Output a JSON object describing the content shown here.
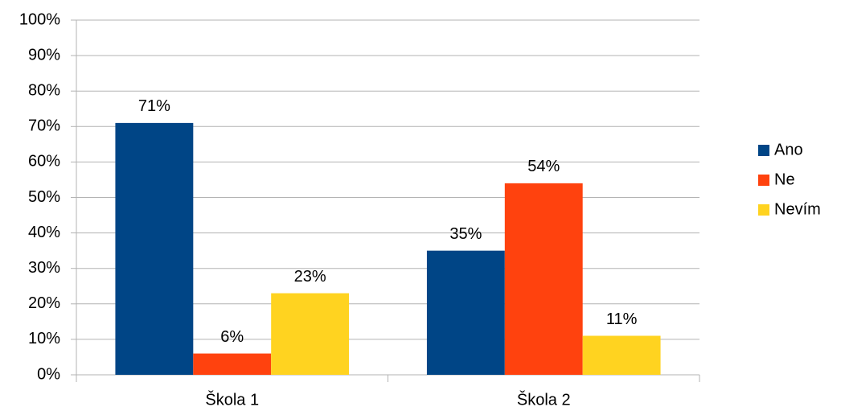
{
  "chart_data": {
    "type": "bar",
    "categories": [
      "Škola 1",
      "Škola 2"
    ],
    "series": [
      {
        "name": "Ano",
        "color": "#004586",
        "values": [
          71,
          35
        ],
        "value_labels": [
          "71%",
          "35%"
        ]
      },
      {
        "name": "Ne",
        "color": "#ff420e",
        "values": [
          6,
          54
        ],
        "value_labels": [
          "6%",
          "54%"
        ]
      },
      {
        "name": "Nevím",
        "color": "#ffd320",
        "values": [
          23,
          11
        ],
        "value_labels": [
          "23%",
          "11%"
        ]
      }
    ],
    "ylim": [
      0,
      100
    ],
    "yticks": [
      {
        "value": 0,
        "label": "0%"
      },
      {
        "value": 10,
        "label": "10%"
      },
      {
        "value": 20,
        "label": "20%"
      },
      {
        "value": 30,
        "label": "30%"
      },
      {
        "value": 40,
        "label": "40%"
      },
      {
        "value": 50,
        "label": "50%"
      },
      {
        "value": 60,
        "label": "60%"
      },
      {
        "value": 70,
        "label": "70%"
      },
      {
        "value": 80,
        "label": "80%"
      },
      {
        "value": 90,
        "label": "90%"
      },
      {
        "value": 100,
        "label": "100%"
      }
    ],
    "grid": true,
    "legend": "right"
  }
}
